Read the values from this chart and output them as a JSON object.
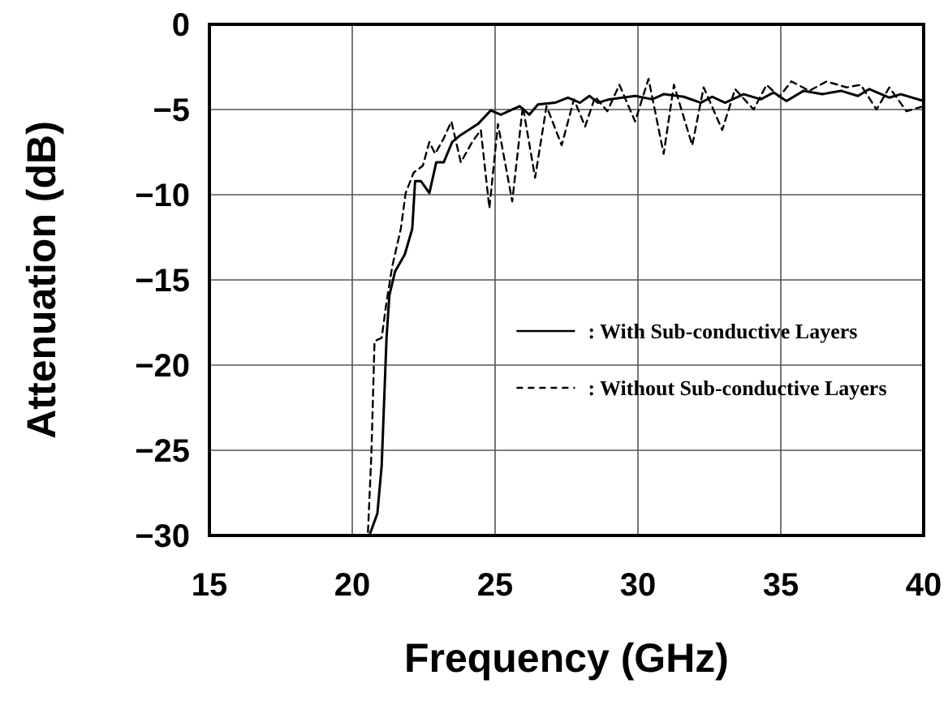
{
  "chart_data": {
    "type": "line",
    "xlabel": "Frequency (GHz)",
    "ylabel": "Attenuation (dB)",
    "xlim": [
      15,
      40
    ],
    "ylim": [
      -30,
      0
    ],
    "xticks": [
      15,
      20,
      25,
      30,
      35,
      40
    ],
    "yticks": [
      -30,
      -25,
      -20,
      -15,
      -10,
      -5,
      0
    ],
    "grid": true,
    "legend": "right",
    "series": [
      {
        "name": ": With Sub-conductive Layers",
        "color": "#000000",
        "line_style": "solid",
        "x": [
          20.6,
          20.88,
          21.03,
          21.2,
          21.3,
          21.5,
          21.84,
          22.1,
          22.2,
          22.4,
          22.7,
          22.94,
          23.2,
          23.5,
          23.75,
          24.4,
          24.85,
          25.2,
          25.86,
          26.2,
          26.5,
          27.1,
          27.55,
          27.97,
          28.3,
          28.6,
          29.0,
          29.9,
          30.5,
          30.9,
          31.6,
          32.2,
          32.6,
          33.05,
          33.7,
          34.3,
          34.75,
          35.2,
          35.8,
          36.45,
          37.1,
          37.7,
          38.1,
          38.8,
          39.2,
          40
        ],
        "values": [
          -30,
          -28.7,
          -25.9,
          -18.4,
          -15.9,
          -14.5,
          -13.5,
          -12,
          -9.2,
          -9.2,
          -9.9,
          -8.1,
          -8.1,
          -6.9,
          -6.55,
          -5.85,
          -5.05,
          -5.3,
          -4.8,
          -5.3,
          -4.7,
          -4.6,
          -4.3,
          -4.6,
          -4.2,
          -4.6,
          -4.4,
          -4.2,
          -4.4,
          -4.1,
          -4.25,
          -4.6,
          -4.25,
          -4.6,
          -4.1,
          -4.4,
          -4,
          -4.5,
          -3.9,
          -4.1,
          -3.9,
          -4.2,
          -3.8,
          -4.3,
          -4.1,
          -4.5
        ]
      },
      {
        "name": ": Without Sub-conductive Layers",
        "color": "#000000",
        "line_style": "dashed",
        "x": [
          20.55,
          20.67,
          20.78,
          21.03,
          21.2,
          21.4,
          21.7,
          21.87,
          22.15,
          22.47,
          22.7,
          22.9,
          23.2,
          23.47,
          23.8,
          24.2,
          24.5,
          24.8,
          25.1,
          25.6,
          25.97,
          26.4,
          26.8,
          27.33,
          27.76,
          28.15,
          28.5,
          28.93,
          29.35,
          29.9,
          30.37,
          30.9,
          31.26,
          31.9,
          32.3,
          32.95,
          33.4,
          34.05,
          34.5,
          34.95,
          35.37,
          36,
          36.6,
          37.3,
          37.8,
          38.35,
          38.8,
          39.4,
          40
        ],
        "values": [
          -29.8,
          -25.2,
          -18.6,
          -18.4,
          -16.3,
          -14.2,
          -12,
          -9.9,
          -8.7,
          -8.3,
          -6.9,
          -7.6,
          -6.7,
          -5.7,
          -8.1,
          -6.9,
          -6.2,
          -10.8,
          -5.85,
          -10.4,
          -4.8,
          -9,
          -4.8,
          -7.1,
          -4.4,
          -6,
          -4.25,
          -5.1,
          -3.55,
          -5.7,
          -3.2,
          -7.6,
          -3.55,
          -7.1,
          -3.7,
          -6.2,
          -3.8,
          -5,
          -3.55,
          -4.25,
          -3.35,
          -3.9,
          -3.35,
          -3.7,
          -3.55,
          -5,
          -3.7,
          -5.1,
          -4.8
        ]
      }
    ]
  }
}
